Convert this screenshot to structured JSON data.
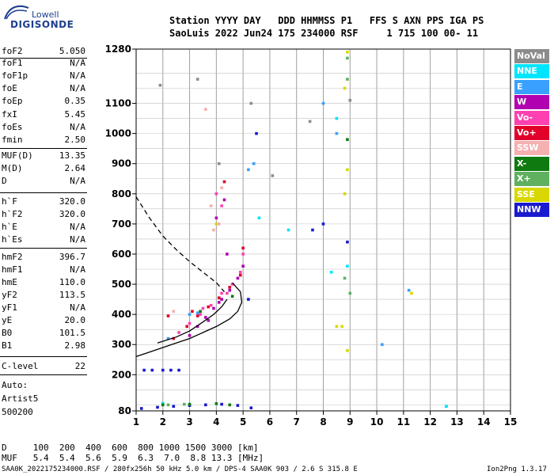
{
  "logo": {
    "brand_top": "Lowell",
    "brand_main": "DIGISONDE"
  },
  "header": {
    "line1": "Station YYYY DAY   DDD HHMMSS P1   FFS S AXN PPS IGA PS",
    "line2": "SaoLuis 2022 Jun24 175 234000 RSF     1 715 100 00- 11"
  },
  "params": [
    {
      "name": "foF2",
      "value": "5.050"
    },
    {
      "name": "foF1",
      "value": "N/A"
    },
    {
      "name": "foF1p",
      "value": "N/A"
    },
    {
      "name": "foE",
      "value": "N/A"
    },
    {
      "name": "foEp",
      "value": "0.35"
    },
    {
      "name": "fxI",
      "value": "5.45"
    },
    {
      "name": "foEs",
      "value": "N/A"
    },
    {
      "name": "fmin",
      "value": "2.50"
    },
    {
      "name": "MUF(D)",
      "value": "13.35"
    },
    {
      "name": "M(D)",
      "value": "2.64"
    },
    {
      "name": "D",
      "value": "N/A"
    },
    {
      "name": "h`F",
      "value": "320.0"
    },
    {
      "name": "h`F2",
      "value": "320.0"
    },
    {
      "name": "h`E",
      "value": "N/A"
    },
    {
      "name": "h`Es",
      "value": "N/A"
    },
    {
      "name": "hmF2",
      "value": "396.7"
    },
    {
      "name": "hmF1",
      "value": "N/A"
    },
    {
      "name": "hmE",
      "value": "110.0"
    },
    {
      "name": "yF2",
      "value": "113.5"
    },
    {
      "name": "yF1",
      "value": "N/A"
    },
    {
      "name": "yE",
      "value": "20.0"
    },
    {
      "name": "B0",
      "value": "101.5"
    },
    {
      "name": "B1",
      "value": "2.98"
    },
    {
      "name": "C-level",
      "value": "22"
    }
  ],
  "auto": {
    "line1": "Auto:",
    "line2": "Artist5",
    "line3": "500200"
  },
  "footer": {
    "d_row": "D     100  200  400  600  800 1000 1500 3000 [km]",
    "muf_row": "MUF   5.4  5.4  5.6  5.9  6.3  7.0  8.8 13.3 [MHz]",
    "info": "SAA0K_2022175234000.RSF / 280fx256h 50 kHz 5.0 km / DPS-4 SAA0K 903 / 2.6 S 315.8 E",
    "version": "Ion2Png 1.3.17"
  },
  "legend": [
    {
      "label": "NoVal",
      "color": "#8c8c8c"
    },
    {
      "label": "NNE",
      "color": "#00e5ff"
    },
    {
      "label": "E",
      "color": "#3aa0ff"
    },
    {
      "label": "W",
      "color": "#b000b0"
    },
    {
      "label": "Vo-",
      "color": "#ff40b0"
    },
    {
      "label": "Vo+",
      "color": "#e0002a"
    },
    {
      "label": "SSW",
      "color": "#f5b0b0"
    },
    {
      "label": "X-",
      "color": "#0f7a0f"
    },
    {
      "label": "X+",
      "color": "#5fb05f"
    },
    {
      "label": "SSE",
      "color": "#d8d800"
    },
    {
      "label": "NNW",
      "color": "#1a1ad0"
    }
  ],
  "chart_data": {
    "type": "scatter",
    "title": "",
    "xlabel": "",
    "ylabel": "",
    "xlim": [
      1,
      15
    ],
    "ylim": [
      80,
      1280
    ],
    "x_ticks": [
      1,
      2,
      3,
      4,
      5,
      6,
      7,
      8,
      9,
      10,
      11,
      12,
      13,
      14,
      15
    ],
    "y_ticks": [
      80,
      200,
      300,
      400,
      500,
      600,
      700,
      800,
      900,
      1000,
      1100,
      1280
    ],
    "grid": true,
    "series": [
      {
        "color": "#b000b0",
        "points": [
          [
            3.0,
            330
          ],
          [
            3.3,
            360
          ],
          [
            3.6,
            390
          ],
          [
            3.9,
            420
          ],
          [
            4.2,
            450
          ],
          [
            4.5,
            480
          ],
          [
            4.8,
            520
          ],
          [
            5.0,
            560
          ],
          [
            4.4,
            600
          ],
          [
            4.0,
            720
          ],
          [
            4.3,
            780
          ],
          [
            3.7,
            380
          ],
          [
            4.1,
            440
          ]
        ]
      },
      {
        "color": "#ff40b0",
        "points": [
          [
            2.6,
            340
          ],
          [
            3.0,
            370
          ],
          [
            3.4,
            400
          ],
          [
            3.8,
            430
          ],
          [
            4.2,
            470
          ],
          [
            4.6,
            500
          ],
          [
            4.9,
            540
          ],
          [
            3.5,
            420
          ],
          [
            4.4,
            470
          ],
          [
            5.0,
            600
          ],
          [
            4.0,
            800
          ],
          [
            4.2,
            760
          ]
        ]
      },
      {
        "color": "#e0002a",
        "points": [
          [
            2.4,
            320
          ],
          [
            2.9,
            360
          ],
          [
            3.3,
            395
          ],
          [
            3.7,
            425
          ],
          [
            4.1,
            455
          ],
          [
            4.5,
            490
          ],
          [
            4.9,
            530
          ],
          [
            2.2,
            395
          ],
          [
            3.1,
            410
          ],
          [
            5.0,
            620
          ],
          [
            4.3,
            840
          ]
        ]
      },
      {
        "color": "#1a1ad0",
        "points": [
          [
            1.3,
            215
          ],
          [
            1.6,
            215
          ],
          [
            2.0,
            215
          ],
          [
            2.3,
            215
          ],
          [
            2.6,
            215
          ],
          [
            1.2,
            88
          ],
          [
            1.8,
            92
          ],
          [
            2.4,
            95
          ],
          [
            3.0,
            98
          ],
          [
            3.6,
            100
          ],
          [
            4.2,
            102
          ],
          [
            4.8,
            98
          ],
          [
            5.2,
            450
          ],
          [
            8.0,
            700
          ],
          [
            8.9,
            640
          ],
          [
            7.6,
            680
          ],
          [
            5.5,
            1000
          ],
          [
            5.3,
            90
          ]
        ]
      },
      {
        "color": "#3aa0ff",
        "points": [
          [
            3.0,
            400
          ],
          [
            3.3,
            405
          ],
          [
            2.2,
            320
          ],
          [
            5.2,
            880
          ],
          [
            5.4,
            900
          ],
          [
            8.0,
            1100
          ],
          [
            8.5,
            1000
          ],
          [
            11.2,
            480
          ],
          [
            10.2,
            300
          ],
          [
            12.6,
            95
          ]
        ]
      },
      {
        "color": "#00e5ff",
        "points": [
          [
            8.5,
            1050
          ],
          [
            8.9,
            560
          ],
          [
            8.3,
            540
          ],
          [
            5.6,
            720
          ],
          [
            6.7,
            680
          ],
          [
            12.6,
            95
          ],
          [
            2.0,
            105
          ]
        ]
      },
      {
        "color": "#5fb05f",
        "points": [
          [
            8.9,
            1250
          ],
          [
            8.9,
            1180
          ],
          [
            8.8,
            520
          ],
          [
            9.0,
            470
          ],
          [
            2.2,
            100
          ],
          [
            2.8,
            102
          ]
        ]
      },
      {
        "color": "#d8d800",
        "points": [
          [
            8.9,
            1270
          ],
          [
            8.8,
            1150
          ],
          [
            8.9,
            880
          ],
          [
            8.8,
            800
          ],
          [
            8.7,
            360
          ],
          [
            8.5,
            360
          ],
          [
            8.9,
            280
          ],
          [
            11.3,
            470
          ],
          [
            4.0,
            700
          ]
        ]
      },
      {
        "color": "#0f7a0f",
        "points": [
          [
            2.0,
            100
          ],
          [
            3.0,
            102
          ],
          [
            4.0,
            104
          ],
          [
            4.5,
            100
          ],
          [
            3.4,
            410
          ],
          [
            4.6,
            460
          ],
          [
            8.9,
            980
          ]
        ]
      },
      {
        "color": "#f5b0b0",
        "points": [
          [
            3.9,
            680
          ],
          [
            4.1,
            700
          ],
          [
            3.8,
            760
          ],
          [
            4.2,
            820
          ],
          [
            2.4,
            410
          ],
          [
            3.6,
            1080
          ]
        ]
      },
      {
        "color": "#8c8c8c",
        "points": [
          [
            1.9,
            1160
          ],
          [
            3.3,
            1180
          ],
          [
            4.1,
            900
          ],
          [
            5.3,
            1100
          ],
          [
            7.5,
            1040
          ],
          [
            9.0,
            1110
          ],
          [
            6.1,
            860
          ]
        ]
      }
    ],
    "curves": [
      {
        "style": "solid",
        "points": [
          [
            1.0,
            260
          ],
          [
            1.5,
            275
          ],
          [
            2.0,
            290
          ],
          [
            2.5,
            305
          ],
          [
            3.0,
            320
          ],
          [
            3.5,
            340
          ],
          [
            4.0,
            360
          ],
          [
            4.5,
            385
          ],
          [
            4.8,
            410
          ],
          [
            4.95,
            440
          ],
          [
            4.9,
            475
          ],
          [
            4.6,
            505
          ]
        ]
      },
      {
        "style": "solid",
        "points": [
          [
            1.8,
            305
          ],
          [
            2.5,
            325
          ],
          [
            3.0,
            345
          ],
          [
            3.5,
            375
          ],
          [
            3.9,
            400
          ],
          [
            4.2,
            425
          ],
          [
            4.4,
            450
          ]
        ]
      },
      {
        "style": "dashed",
        "points": [
          [
            1.0,
            790
          ],
          [
            1.5,
            720
          ],
          [
            2.0,
            660
          ],
          [
            2.5,
            615
          ],
          [
            3.0,
            575
          ],
          [
            3.5,
            540
          ],
          [
            4.0,
            505
          ],
          [
            4.3,
            475
          ]
        ]
      }
    ]
  }
}
